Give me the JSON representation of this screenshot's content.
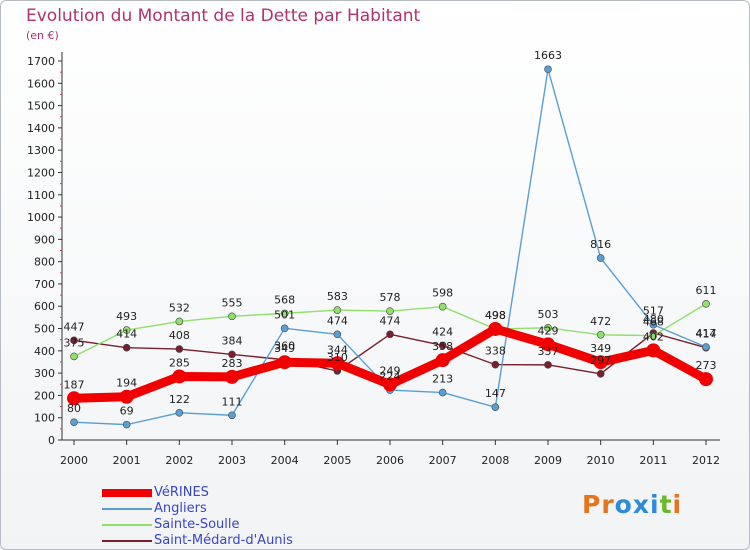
{
  "title": "Evolution du Montant de la Dette par Habitant",
  "unit_label": "(en €)",
  "logo": {
    "text": "Proxiti",
    "colors": [
      "#e8731a",
      "#e8731a",
      "#2e8bd8",
      "#2e8bd8",
      "#2e8bd8",
      "#6cb82c",
      "#e8731a"
    ]
  },
  "chart_data": {
    "type": "line",
    "x": [
      2000,
      2001,
      2002,
      2003,
      2004,
      2005,
      2006,
      2007,
      2008,
      2009,
      2010,
      2011,
      2012
    ],
    "ylim": [
      0,
      1700
    ],
    "yticks": [
      0,
      100,
      200,
      300,
      400,
      500,
      600,
      700,
      800,
      900,
      1000,
      1100,
      1200,
      1300,
      1400,
      1500,
      1600,
      1700
    ],
    "grid": false,
    "legend_position": "bottom-left",
    "series": [
      {
        "name": "Saint-Médard-d'Aunis",
        "color": "#7a1f2e",
        "values": [
          447,
          414,
          408,
          384,
          360,
          310,
          474,
          424,
          338,
          337,
          297,
          480,
          414
        ]
      },
      {
        "name": "Sainte-Soulle",
        "color": "#8fe06a",
        "values": [
          375,
          493,
          532,
          555,
          568,
          583,
          578,
          598,
          498,
          503,
          472,
          468,
          611
        ]
      },
      {
        "name": "Angliers",
        "color": "#5a9fd4",
        "values": [
          80,
          69,
          122,
          111,
          501,
          474,
          224,
          213,
          147,
          1663,
          816,
          517,
          417
        ]
      },
      {
        "name": "VéRINES",
        "color": "#f00000",
        "values": [
          187,
          194,
          285,
          283,
          349,
          344,
          249,
          358,
          498,
          429,
          349,
          402,
          273
        ]
      }
    ],
    "legend_order": [
      "VéRINES",
      "Angliers",
      "Sainte-Soulle",
      "Saint-Médard-d'Aunis"
    ]
  }
}
